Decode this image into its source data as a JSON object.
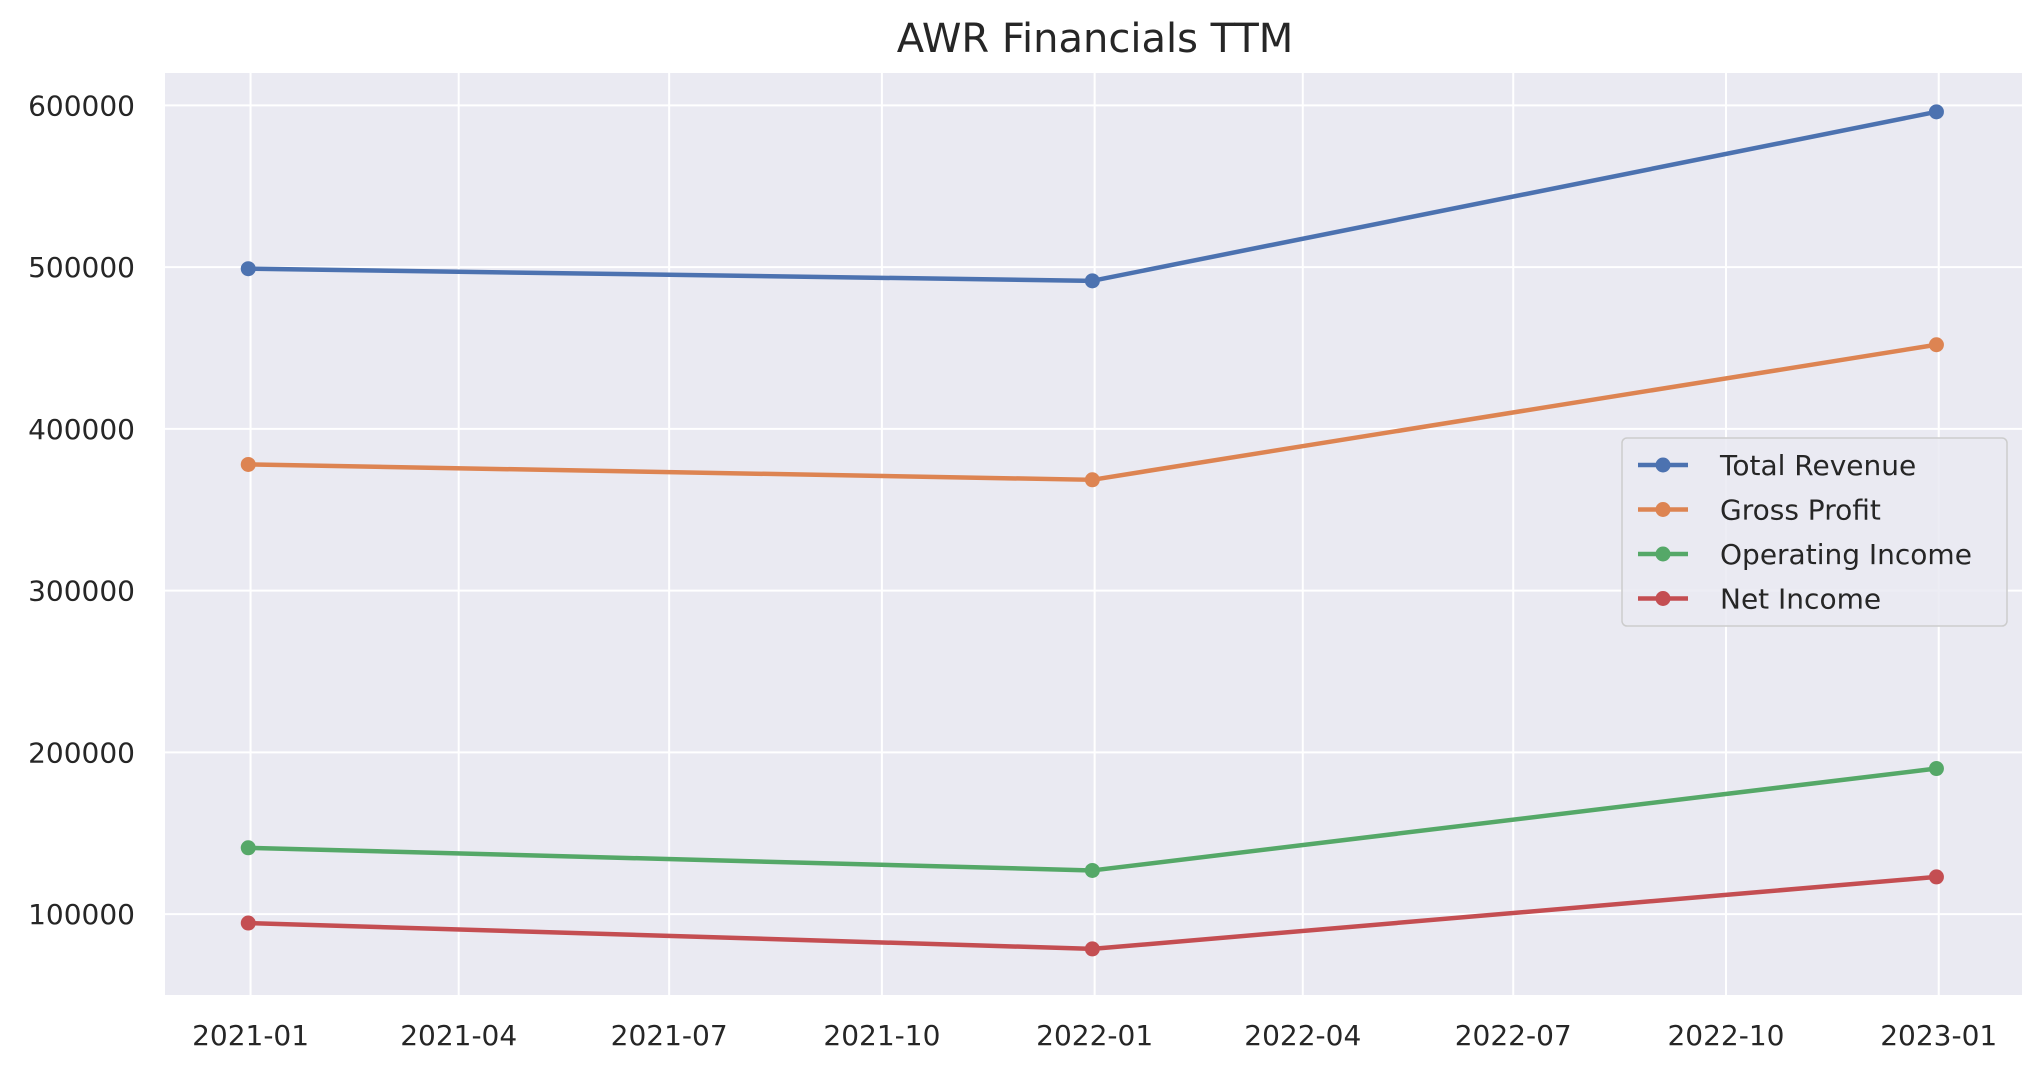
{
  "chart_data": {
    "type": "line",
    "title": "AWR Financials TTM",
    "xlabel": "",
    "ylabel": "",
    "x": [
      "2020-12-31",
      "2021-12-31",
      "2022-12-31"
    ],
    "series": [
      {
        "name": "Total Revenue",
        "color": "#4c72b0",
        "values": [
          499000,
          491500,
          596000
        ]
      },
      {
        "name": "Gross Profit",
        "color": "#dd8452",
        "values": [
          378000,
          368500,
          452000
        ]
      },
      {
        "name": "Operating Income",
        "color": "#55a868",
        "values": [
          141000,
          127000,
          190000
        ]
      },
      {
        "name": "Net Income",
        "color": "#c44e52",
        "values": [
          94500,
          78500,
          123000
        ]
      }
    ],
    "xlim": [
      "2020-11-25",
      "2023-02-06"
    ],
    "ylim": [
      50000,
      620000
    ],
    "x_ticks": [
      "2021-01",
      "2021-04",
      "2021-07",
      "2021-10",
      "2022-01",
      "2022-04",
      "2022-07",
      "2022-10",
      "2023-01"
    ],
    "y_ticks": [
      100000,
      200000,
      300000,
      400000,
      500000,
      600000
    ],
    "grid": true,
    "legend_position": "center-right",
    "background_color": "#eaeaf2",
    "grid_color": "#ffffff",
    "marker": "circle"
  }
}
